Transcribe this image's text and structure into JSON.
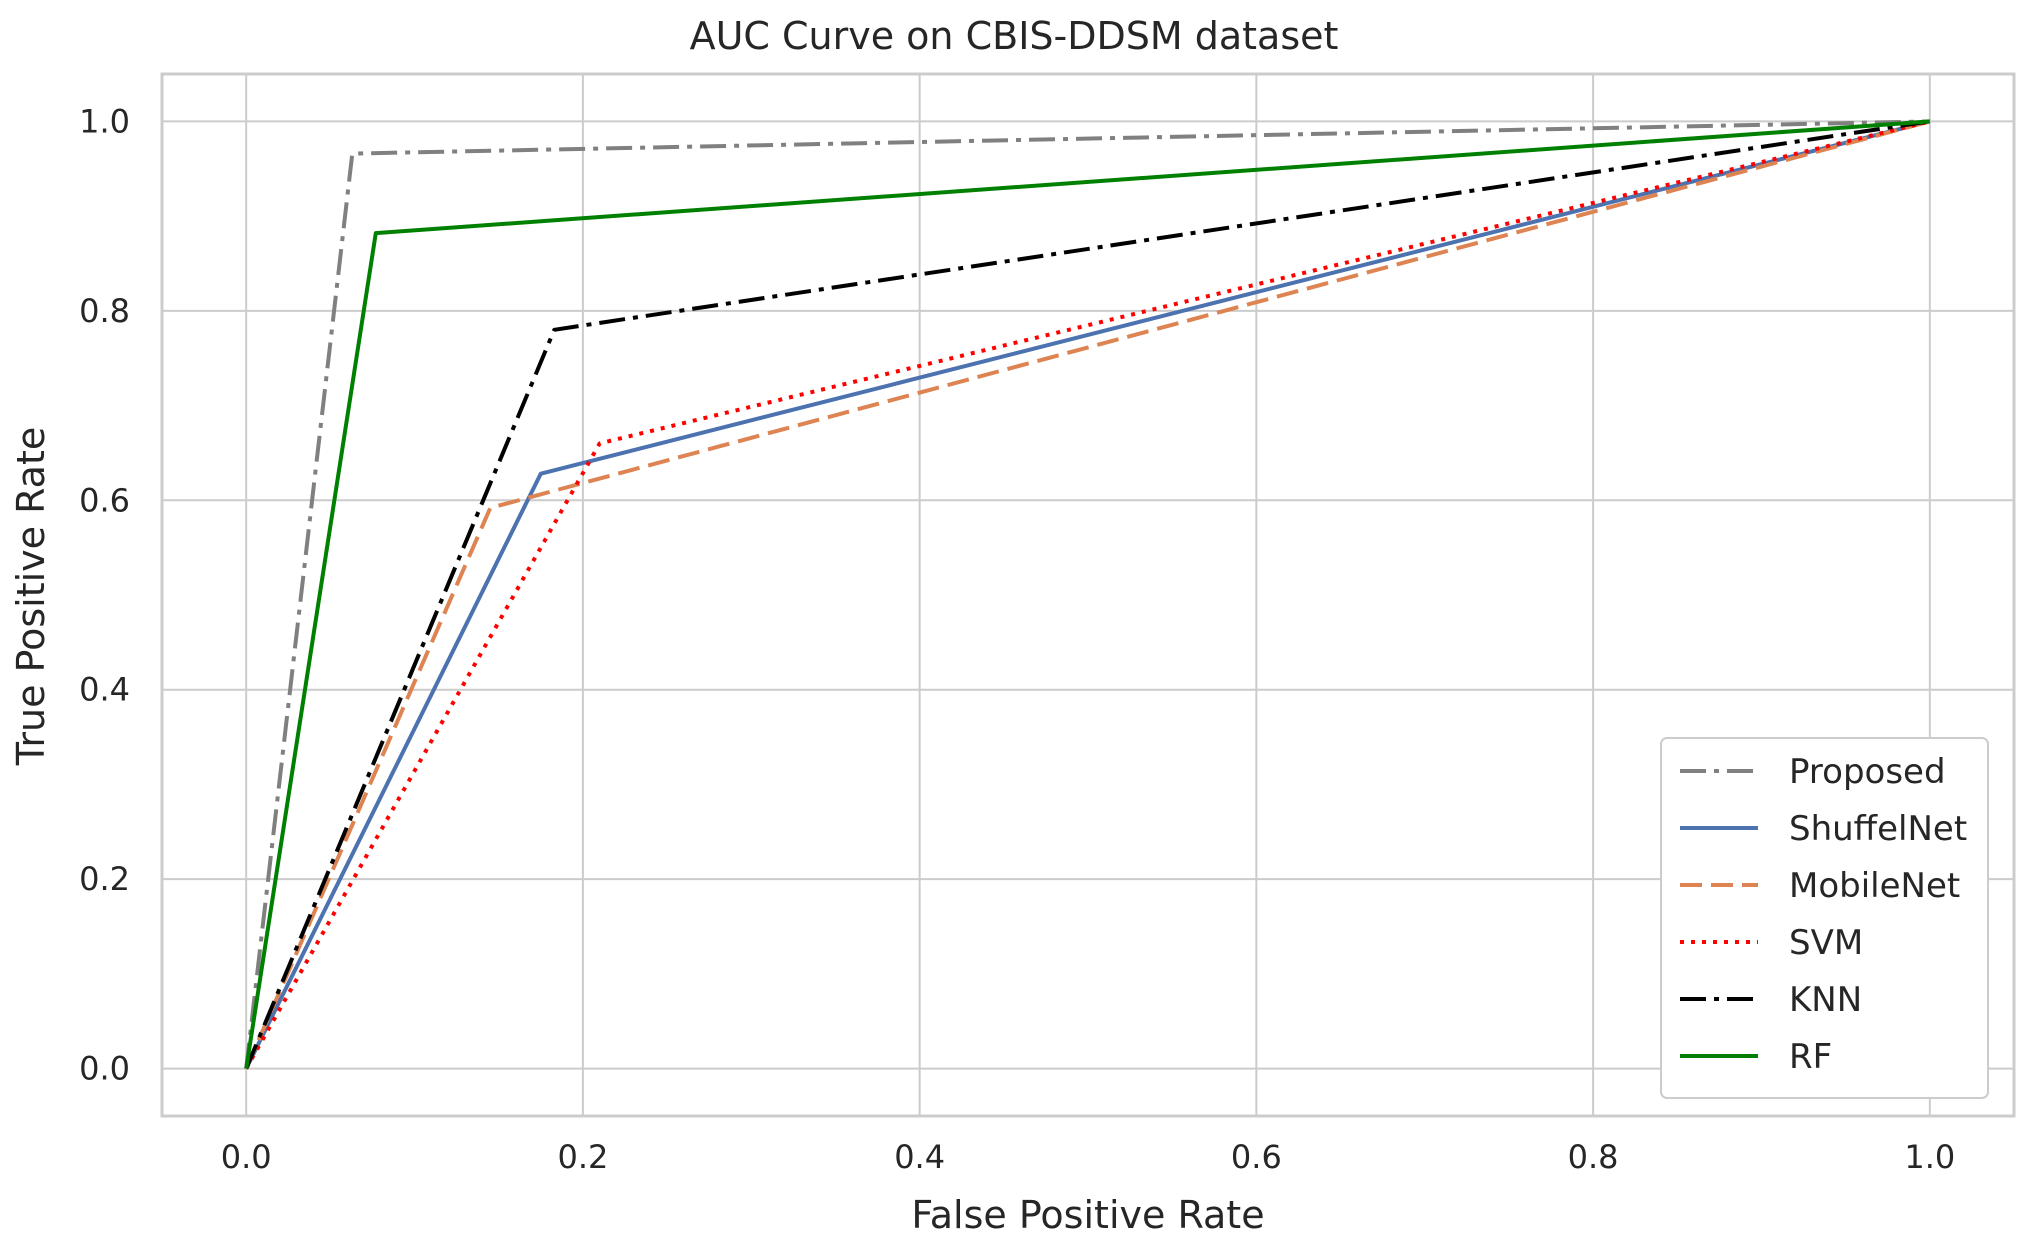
{
  "chart_data": {
    "type": "line",
    "title": "AUC Curve on CBIS-DDSM dataset",
    "xlabel": "False Positive Rate",
    "ylabel": "True Positive Rate",
    "xlim": [
      -0.05,
      1.05
    ],
    "ylim": [
      -0.05,
      1.05
    ],
    "xticks": [
      0.0,
      0.2,
      0.4,
      0.6,
      0.8,
      1.0
    ],
    "yticks": [
      0.0,
      0.2,
      0.4,
      0.6,
      0.8,
      1.0
    ],
    "xtick_labels": [
      "0.0",
      "0.2",
      "0.4",
      "0.6",
      "0.8",
      "1.0"
    ],
    "ytick_labels": [
      "0.0",
      "0.2",
      "0.4",
      "0.6",
      "0.8",
      "1.0"
    ],
    "grid": true,
    "legend_position": "lower-right",
    "series": [
      {
        "name": "Proposed",
        "color": "#808080",
        "style": "dashdot",
        "x": [
          0.0,
          0.063,
          1.0
        ],
        "y": [
          0.0,
          0.966,
          1.0
        ]
      },
      {
        "name": "ShuffelNet",
        "color": "#4c72b0",
        "style": "solid",
        "x": [
          0.0,
          0.175,
          1.0
        ],
        "y": [
          0.0,
          0.628,
          1.0
        ]
      },
      {
        "name": "MobileNet",
        "color": "#dd8452",
        "style": "dashed",
        "x": [
          0.0,
          0.145,
          1.0
        ],
        "y": [
          0.0,
          0.592,
          1.0
        ]
      },
      {
        "name": "SVM",
        "color": "#ff0000",
        "style": "dotted",
        "x": [
          0.0,
          0.21,
          1.0
        ],
        "y": [
          0.0,
          0.66,
          1.0
        ]
      },
      {
        "name": "KNN",
        "color": "#000000",
        "style": "dashdot",
        "x": [
          0.0,
          0.183,
          1.0
        ],
        "y": [
          0.0,
          0.78,
          1.0
        ]
      },
      {
        "name": "RF",
        "color": "#008000",
        "style": "solid",
        "x": [
          0.0,
          0.077,
          1.0
        ],
        "y": [
          0.0,
          0.882,
          1.0
        ]
      }
    ]
  }
}
